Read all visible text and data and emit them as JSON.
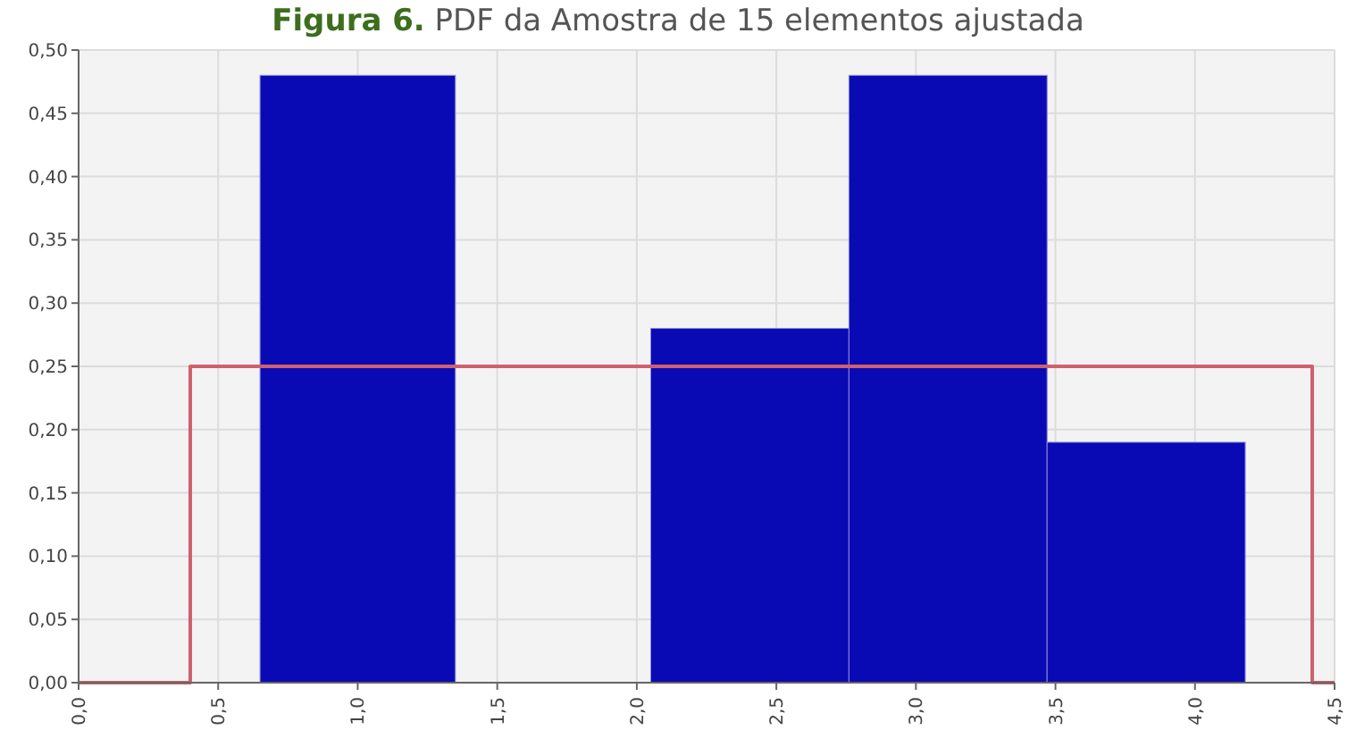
{
  "chart_data": {
    "type": "histogram",
    "title": "Figura 6. PDF da Amostra de 15 elementos ajustada",
    "series": [
      {
        "color": "#0a0ab4",
        "bins": [
          0.65,
          1.35,
          2.05,
          2.76,
          3.47,
          4.18
        ],
        "values": [
          0.48,
          0,
          0.28,
          0.48,
          0.19
        ]
      },
      {
        "type": "step",
        "color": "#d0606e",
        "x": [
          0,
          0.4,
          4.42,
          4.5
        ],
        "values": [
          0,
          0.25,
          0,
          0
        ]
      }
    ],
    "xlim": [
      0,
      4.5
    ],
    "xticks": [
      {
        "value": 0,
        "label": "0,0"
      },
      {
        "value": 0.5,
        "label": "0,5"
      },
      {
        "value": 1,
        "label": "1,0"
      },
      {
        "value": 1.5,
        "label": "1,5"
      },
      {
        "value": 2,
        "label": "2,0"
      },
      {
        "value": 2.5,
        "label": "2,5"
      },
      {
        "value": 3,
        "label": "3,0"
      },
      {
        "value": 3.5,
        "label": "3,5"
      },
      {
        "value": 4,
        "label": "4,0"
      },
      {
        "value": 4.5,
        "label": "4,5"
      }
    ],
    "ylim": [
      0,
      0.5
    ],
    "yticks": [
      {
        "value": 0,
        "label": "0,00"
      },
      {
        "value": 0.05,
        "label": "0,05"
      },
      {
        "value": 0.1,
        "label": "0,10"
      },
      {
        "value": 0.15,
        "label": "0,15"
      },
      {
        "value": 0.2,
        "label": "0,20"
      },
      {
        "value": 0.25,
        "label": "0,25"
      },
      {
        "value": 0.3,
        "label": "0,30"
      },
      {
        "value": 0.35,
        "label": "0,35"
      },
      {
        "value": 0.4,
        "label": "0,40"
      },
      {
        "value": 0.45,
        "label": "0,45"
      },
      {
        "value": 0.5,
        "label": "0,50"
      }
    ],
    "grid": true
  }
}
